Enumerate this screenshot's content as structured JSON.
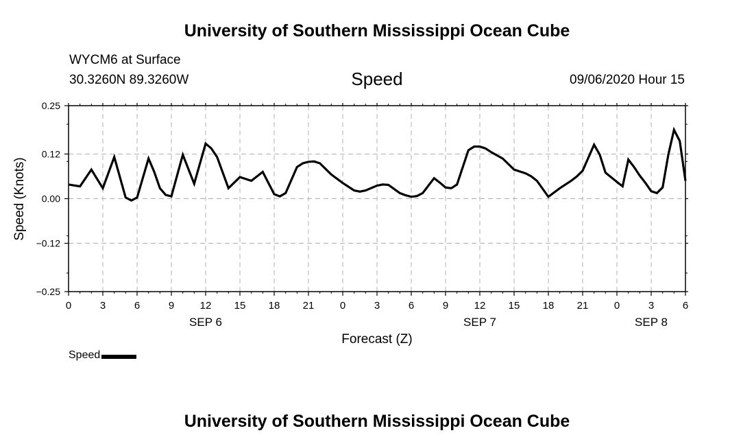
{
  "header": {
    "title": "University of Southern Mississippi Ocean Cube",
    "station": "WYCM6 at Surface",
    "coords": "30.3260N 89.3260W",
    "variable": "Speed",
    "datetime": "09/06/2020 Hour 15"
  },
  "footer": {
    "title": "University of Southern Mississippi Ocean Cube"
  },
  "legend": {
    "label": "Speed"
  },
  "chart_data": {
    "type": "line",
    "ylabel": "Speed (Knots)",
    "xlabel": "Forecast (Z)",
    "ylim": [
      -0.25,
      0.25
    ],
    "y_ticks": [
      0.25,
      0.12,
      0.0,
      -0.12,
      -0.25
    ],
    "y_tick_labels": [
      "0.25",
      "0.12",
      "0.00",
      "−0.12",
      "−0.25"
    ],
    "x_tick_labels": [
      "0",
      "3",
      "6",
      "9",
      "12",
      "15",
      "18",
      "21",
      "0",
      "3",
      "6",
      "9",
      "12",
      "15",
      "18",
      "21",
      "0",
      "3",
      "6"
    ],
    "date_labels": [
      {
        "label": "SEP 6",
        "at_hour": 12
      },
      {
        "label": "SEP 7",
        "at_hour": 36
      },
      {
        "label": "SEP 8",
        "at_hour": 51
      }
    ],
    "x_range_hours": [
      0,
      54
    ],
    "grid": true,
    "series": [
      {
        "name": "Speed",
        "x_hours": [
          0,
          1,
          2,
          3,
          4,
          5,
          5.5,
          6,
          7,
          7.5,
          8,
          8.5,
          9,
          10,
          11,
          12,
          12.5,
          13,
          14,
          15,
          16,
          17,
          18,
          18.5,
          19,
          20,
          20.5,
          21,
          21.5,
          22,
          23,
          24,
          25,
          25.5,
          26,
          27,
          27.5,
          28,
          29,
          29.5,
          30,
          30.5,
          31,
          32,
          32.5,
          33,
          33.5,
          34,
          35,
          35.5,
          36,
          36.5,
          37,
          38,
          38.5,
          39,
          40,
          40.5,
          41,
          42,
          43,
          44,
          44.5,
          45,
          46,
          46.5,
          47,
          48,
          48.5,
          49,
          49.5,
          50,
          50.5,
          51,
          51.5,
          52,
          52.5,
          53,
          53.5,
          54
        ],
        "values": [
          0.038,
          0.033,
          0.078,
          0.028,
          0.112,
          0.003,
          -0.005,
          0.003,
          0.108,
          0.072,
          0.028,
          0.01,
          0.006,
          0.118,
          0.04,
          0.148,
          0.135,
          0.112,
          0.028,
          0.058,
          0.048,
          0.072,
          0.012,
          0.006,
          0.015,
          0.085,
          0.095,
          0.099,
          0.1,
          0.095,
          0.065,
          0.042,
          0.022,
          0.019,
          0.022,
          0.035,
          0.038,
          0.037,
          0.015,
          0.009,
          0.005,
          0.007,
          0.015,
          0.055,
          0.043,
          0.03,
          0.028,
          0.038,
          0.13,
          0.14,
          0.14,
          0.135,
          0.125,
          0.108,
          0.093,
          0.078,
          0.068,
          0.06,
          0.048,
          0.005,
          0.028,
          0.048,
          0.06,
          0.075,
          0.145,
          0.118,
          0.07,
          0.045,
          0.033,
          0.105,
          0.085,
          0.062,
          0.042,
          0.02,
          0.015,
          0.03,
          0.118,
          0.185,
          0.155,
          0.048
        ]
      }
    ]
  }
}
